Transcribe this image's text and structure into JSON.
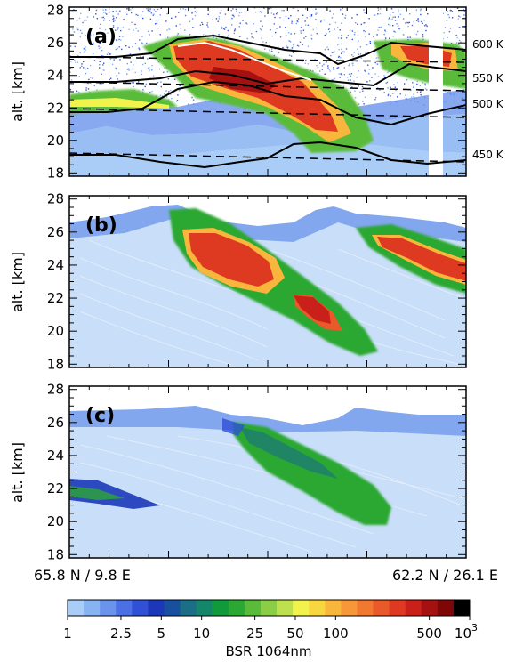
{
  "chart_data": [
    {
      "type": "heatmap",
      "panel_label": "(a)",
      "ylabel": "alt. [km]",
      "ylim": [
        17.8,
        28.2
      ],
      "yticks": [
        18,
        20,
        22,
        24,
        26,
        28
      ],
      "isentropes": [
        "600 K",
        "550 K",
        "500 K",
        "450 K"
      ]
    },
    {
      "type": "heatmap",
      "panel_label": "(b)",
      "ylabel": "alt. [km]",
      "ylim": [
        17.8,
        28.2
      ],
      "yticks": [
        18,
        20,
        22,
        24,
        26,
        28
      ]
    },
    {
      "type": "heatmap",
      "panel_label": "(c)",
      "ylabel": "alt. [km]",
      "ylim": [
        17.8,
        28.2
      ],
      "yticks": [
        18,
        20,
        22,
        24,
        26,
        28
      ]
    }
  ],
  "track": {
    "start_label": "65.8 N / 9.8 E",
    "end_label": "62.2 N / 26.1 E"
  },
  "colorbar": {
    "label": "BSR 1064nm",
    "min": 1,
    "max": 1000,
    "tick_labels": [
      "1",
      "2.5",
      "5",
      "10",
      "25",
      "50",
      "100",
      "500"
    ],
    "tick_values": [
      1,
      2.5,
      5,
      10,
      25,
      50,
      100,
      500
    ],
    "last_tick_base": "10",
    "last_tick_exp": "3",
    "colors": [
      "#a9cdf6",
      "#87b3f2",
      "#6a94ec",
      "#4c6fe3",
      "#3050d6",
      "#1c38b8",
      "#184f9e",
      "#1a6e86",
      "#16866a",
      "#0f9a3c",
      "#2aa833",
      "#5abb3a",
      "#8ccd46",
      "#bfe04e",
      "#f2f24d",
      "#f7d640",
      "#f8b73c",
      "#f69838",
      "#f07831",
      "#e95a2a",
      "#de3a22",
      "#c9211a",
      "#a51010",
      "#7e0606",
      "#000000"
    ]
  }
}
